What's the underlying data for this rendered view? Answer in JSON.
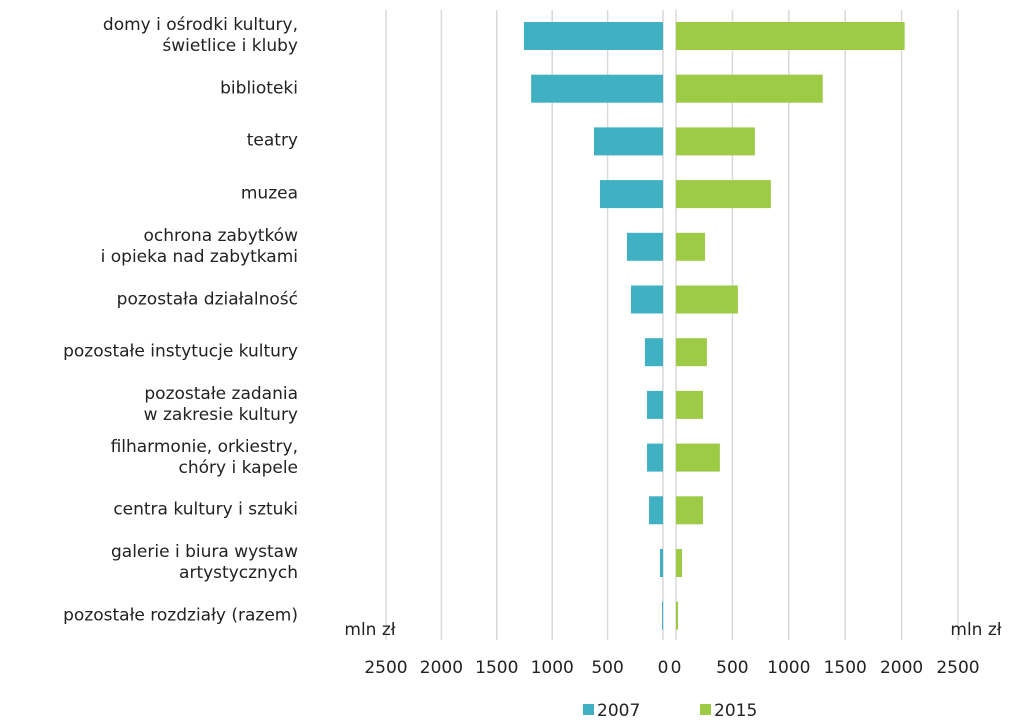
{
  "chart_data": [
    {
      "type": "hbar",
      "reversed": true,
      "axis_label": "mln zł",
      "categories": [
        "domy i ośrodki kultury,\nświetlice i kluby",
        "biblioteki",
        "teatry",
        "muzea",
        "ochrona zabytków\ni opieka nad zabytkami",
        "pozostała działalność",
        "pozostałe instytucje kultury",
        "pozostałe zadania\nw zakresie kultury",
        "filharmonie, orkiestry,\nchóry i kapele",
        "centra kultury i sztuki",
        "galerie i biura wystaw\nartystycznych",
        "pozostałe rozdziały (razem)"
      ],
      "series": [
        {
          "name": "2007",
          "color": "#3fb1c2",
          "values": [
            1255,
            1190,
            623,
            569,
            325,
            289,
            163,
            144,
            144,
            126,
            27,
            9
          ]
        }
      ],
      "xlim": [
        0,
        2500
      ],
      "xticks": [
        0,
        500,
        1000,
        1500,
        2000,
        2500
      ],
      "grid": true
    },
    {
      "type": "hbar",
      "reversed": false,
      "axis_label": "mln zł",
      "series": [
        {
          "name": "2015",
          "color": "#9dcb45",
          "values": [
            2027,
            1301,
            699,
            841,
            257,
            549,
            274,
            239,
            389,
            239,
            53,
            18
          ]
        }
      ],
      "xlim": [
        0,
        2500
      ],
      "xticks": [
        0,
        500,
        1000,
        1500,
        2000,
        2500
      ],
      "grid": true
    }
  ]
}
